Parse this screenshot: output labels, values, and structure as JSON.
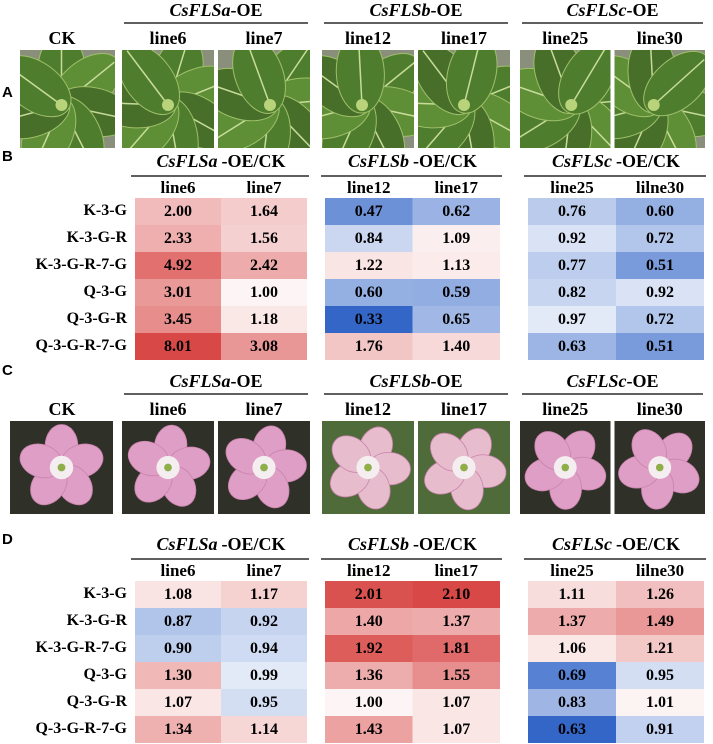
{
  "panel_a": {
    "label": "A",
    "ck": "CK",
    "groups": [
      {
        "gene": "CsFLSa",
        "suffix": "-OE",
        "lines": [
          "line6",
          "line7"
        ]
      },
      {
        "gene": "CsFLSb",
        "suffix": "-OE",
        "lines": [
          "line12",
          "line17"
        ]
      },
      {
        "gene": "CsFLSc",
        "suffix": "-OE",
        "lines": [
          "line25",
          "line30"
        ]
      }
    ]
  },
  "panel_b": {
    "label": "B",
    "groups": [
      {
        "gene": "CsFLSa",
        "suffix": "-OE/CK",
        "lines": [
          "line6",
          "line7"
        ]
      },
      {
        "gene": "CsFLSb",
        "suffix": "-OE/CK",
        "lines": [
          "line12",
          "line17"
        ]
      },
      {
        "gene": "CsFLSc",
        "suffix": "-OE/CK",
        "lines": [
          "line25",
          "lilne30"
        ]
      }
    ],
    "rows": [
      "K-3-G",
      "K-3-G-R",
      "K-3-G-R-7-G",
      "Q-3-G",
      "Q-3-G-R",
      "Q-3-G-R-7-G"
    ],
    "values": [
      [
        "2.00",
        "1.64",
        "0.47",
        "0.62",
        "0.76",
        "0.60"
      ],
      [
        "2.33",
        "1.56",
        "0.84",
        "1.09",
        "0.92",
        "0.72"
      ],
      [
        "4.92",
        "2.42",
        "1.22",
        "1.13",
        "0.77",
        "0.51"
      ],
      [
        "3.01",
        "1.00",
        "0.60",
        "0.59",
        "0.82",
        "0.92"
      ],
      [
        "3.45",
        "1.18",
        "0.33",
        "0.65",
        "0.97",
        "0.72"
      ],
      [
        "8.01",
        "3.08",
        "1.76",
        "1.40",
        "0.63",
        "0.51"
      ]
    ]
  },
  "panel_c": {
    "label": "C",
    "ck": "CK",
    "groups": [
      {
        "gene": "CsFLSa",
        "suffix": "-OE",
        "lines": [
          "line6",
          "line7"
        ]
      },
      {
        "gene": "CsFLSb",
        "suffix": "-OE",
        "lines": [
          "line12",
          "line17"
        ]
      },
      {
        "gene": "CsFLSc",
        "suffix": "-OE",
        "lines": [
          "line25",
          "line30"
        ]
      }
    ]
  },
  "panel_d": {
    "label": "D",
    "groups": [
      {
        "gene": "CsFLSa",
        "suffix": "-OE/CK",
        "lines": [
          "line6",
          "line7"
        ]
      },
      {
        "gene": "CsFLSb",
        "suffix": "-OE/CK",
        "lines": [
          "line12",
          "line17"
        ]
      },
      {
        "gene": "CsFLSc",
        "suffix": "-OE/CK",
        "lines": [
          "line25",
          "lilne30"
        ]
      }
    ],
    "rows": [
      "K-3-G",
      "K-3-G-R",
      "K-3-G-R-7-G",
      "Q-3-G",
      "Q-3-G-R",
      "Q-3-G-R-7-G"
    ],
    "values": [
      [
        "1.08",
        "1.17",
        "2.01",
        "2.10",
        "1.11",
        "1.26"
      ],
      [
        "0.87",
        "0.92",
        "1.40",
        "1.37",
        "1.37",
        "1.49"
      ],
      [
        "0.90",
        "0.94",
        "1.92",
        "1.81",
        "1.06",
        "1.21"
      ],
      [
        "1.30",
        "0.99",
        "1.36",
        "1.55",
        "0.69",
        "0.95"
      ],
      [
        "1.07",
        "0.95",
        "1.00",
        "1.07",
        "0.83",
        "1.01"
      ],
      [
        "1.34",
        "1.14",
        "1.43",
        "1.07",
        "0.63",
        "0.91"
      ]
    ]
  }
}
